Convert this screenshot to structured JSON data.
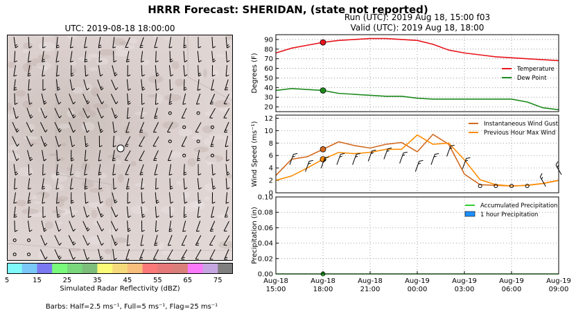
{
  "title": "HRRR Forecast: SHERIDAN, (state not reported)",
  "map": {
    "title": "UTC: 2019-08-18 18:00:00",
    "colorbar": {
      "label": "Simulated Radar Reflectivity (dBZ)",
      "ticks": [
        "5",
        "15",
        "25",
        "35",
        "45",
        "55",
        "65",
        "75"
      ],
      "colors": [
        "#7ff9f9",
        "#79c8f8",
        "#7b79f1",
        "#79fa7b",
        "#79d67b",
        "#7dbe7b",
        "#fbfb77",
        "#f5da7b",
        "#f8be7b",
        "#fb7979",
        "#e57979",
        "#d97f79",
        "#fa79fa",
        "#c5a5e0",
        "#7f7f7f"
      ]
    },
    "barb_note": "Barbs: Half=2.5 ms⁻¹, Full=5 ms⁻¹, Flag=25 ms⁻¹"
  },
  "run_info": {
    "run": "Run (UTC): 2019 Aug 18, 15:00 f03",
    "valid": "Valid (UTC): 2019 Aug 18, 18:00"
  },
  "x_ticks": [
    "Aug-18\n15:00",
    "Aug-18\n18:00",
    "Aug-18\n21:00",
    "Aug-19\n00:00",
    "Aug-19\n03:00",
    "Aug-19\n06:00",
    "Aug-19\n09:00"
  ],
  "colors": {
    "temperature": "#e8141c",
    "dew_point": "#1c8a1c",
    "gust": "#d2691e",
    "max_wind": "#ff8c00",
    "accum_precip": "#32cd32",
    "hourly_precip": "#1e90ff"
  },
  "chart_data": [
    {
      "type": "line",
      "ylabel": "Degrees (F)",
      "ylim": [
        15,
        95
      ],
      "yticks": [
        "20",
        "30",
        "40",
        "50",
        "60",
        "70",
        "80",
        "90"
      ],
      "grid": true,
      "legend": "center-right",
      "x_hours": [
        0,
        1,
        2,
        3,
        4,
        5,
        6,
        7,
        8,
        9,
        10,
        11,
        12,
        13,
        14,
        15,
        16,
        17,
        18
      ],
      "series": [
        {
          "name": "Temperature",
          "values": [
            76,
            81,
            84,
            87,
            89,
            90,
            91,
            91,
            90,
            89,
            85,
            79,
            76,
            74,
            72,
            71,
            70,
            69,
            68
          ]
        },
        {
          "name": "Dew Point",
          "values": [
            37,
            39,
            38,
            37,
            34,
            33,
            32,
            31,
            31,
            29,
            28,
            28,
            28,
            28,
            28,
            28,
            25,
            19,
            17
          ]
        }
      ],
      "highlight_hour": 3
    },
    {
      "type": "line",
      "ylabel": "Wind Speed (ms⁻¹)",
      "ylim": [
        0,
        12.5
      ],
      "yticks": [
        "0",
        "2",
        "4",
        "6",
        "8",
        "10",
        "12"
      ],
      "grid": true,
      "legend": "top-right",
      "x_hours": [
        0,
        1,
        2,
        3,
        4,
        5,
        6,
        7,
        8,
        9,
        10,
        11,
        12,
        13,
        14,
        15,
        16,
        17,
        18
      ],
      "series": [
        {
          "name": "Instantaneous Wind Gust",
          "values": [
            2.8,
            5.4,
            5.8,
            7.0,
            8.2,
            7.6,
            7.2,
            7.8,
            8.1,
            6.6,
            9.4,
            7.8,
            3.0,
            1.3,
            1.2,
            1.1,
            1.2,
            1.5,
            2.0
          ]
        },
        {
          "name": "Previous Hour Max Wind",
          "values": [
            2.0,
            2.7,
            4.0,
            5.4,
            6.5,
            6.3,
            6.5,
            7.0,
            7.0,
            9.3,
            7.8,
            8.0,
            5.3,
            2.1,
            1.3,
            1.1,
            1.2,
            1.5,
            2.0
          ]
        }
      ],
      "highlight_hour": 3
    },
    {
      "type": "line",
      "ylabel": "Precipitation (in)",
      "ylim": [
        0,
        0.1
      ],
      "yticks": [
        "0.00",
        "0.02",
        "0.04",
        "0.06",
        "0.08",
        "0.10"
      ],
      "grid": true,
      "legend": "top-right",
      "x_hours": [
        0,
        18
      ],
      "series": [
        {
          "name": "Accumulated Precipitation",
          "values": [
            0,
            0
          ]
        },
        {
          "name": "1 hour Precipitation",
          "values": [
            0,
            0
          ]
        }
      ],
      "highlight_hour": 3
    }
  ]
}
